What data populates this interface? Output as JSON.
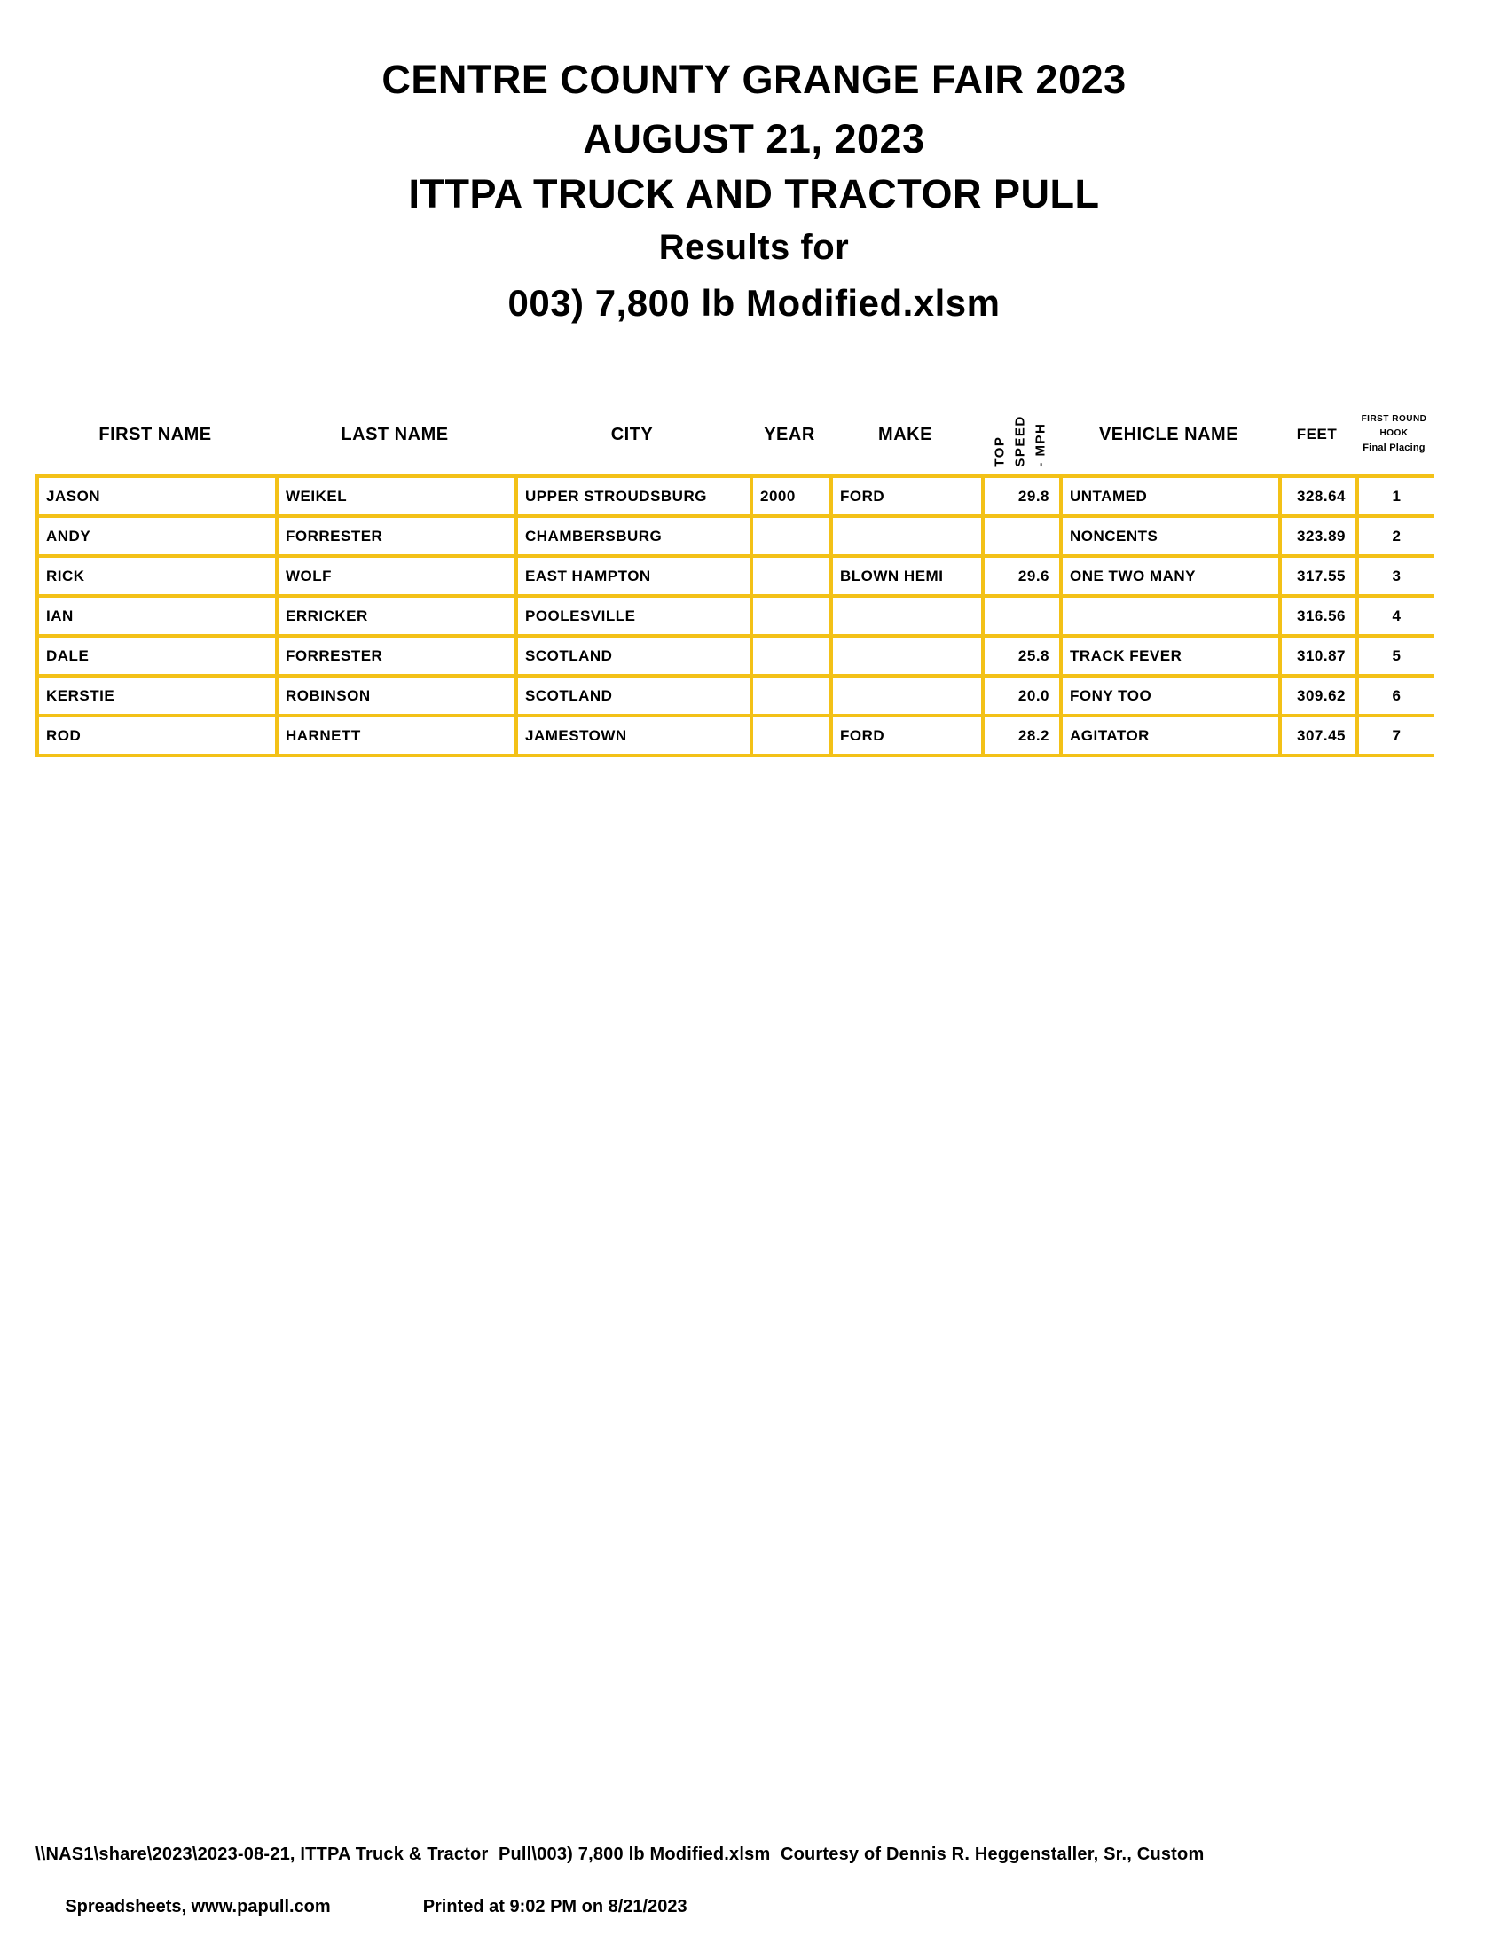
{
  "title": {
    "line1": "CENTRE COUNTY GRANGE FAIR 2023",
    "line2": "AUGUST 21, 2023",
    "line3": "ITTPA TRUCK AND TRACTOR PULL",
    "line4": "Results for",
    "line5": "003) 7,800 lb Modified.xlsm"
  },
  "table": {
    "headers": {
      "first_name": "FIRST NAME",
      "last_name": "LAST NAME",
      "city": "CITY",
      "year": "YEAR",
      "make": "MAKE",
      "top_speed_lines": [
        "TOP",
        "SPEED",
        "- MPH"
      ],
      "vehicle_name": "VEHICLE NAME",
      "feet": "FEET",
      "placing_lines": [
        "FIRST ROUND",
        "HOOK",
        "Final Placing"
      ]
    },
    "rows": [
      {
        "first_name": "JASON",
        "last_name": "WEIKEL",
        "city": "UPPER STROUDSBURG",
        "year": "2000",
        "make": "FORD",
        "top_speed": "29.8",
        "vehicle_name": "UNTAMED",
        "feet": "328.64",
        "placing": "1"
      },
      {
        "first_name": "ANDY",
        "last_name": "FORRESTER",
        "city": "CHAMBERSBURG",
        "year": "",
        "make": "",
        "top_speed": "",
        "vehicle_name": "NONCENTS",
        "feet": "323.89",
        "placing": "2"
      },
      {
        "first_name": "RICK",
        "last_name": "WOLF",
        "city": "EAST HAMPTON",
        "year": "",
        "make": "BLOWN HEMI",
        "top_speed": "29.6",
        "vehicle_name": "ONE TWO MANY",
        "feet": "317.55",
        "placing": "3"
      },
      {
        "first_name": "IAN",
        "last_name": "ERRICKER",
        "city": "POOLESVILLE",
        "year": "",
        "make": "",
        "top_speed": "",
        "vehicle_name": "",
        "feet": "316.56",
        "placing": "4"
      },
      {
        "first_name": "DALE",
        "last_name": "FORRESTER",
        "city": "SCOTLAND",
        "year": "",
        "make": "",
        "top_speed": "25.8",
        "vehicle_name": "TRACK FEVER",
        "feet": "310.87",
        "placing": "5"
      },
      {
        "first_name": "KERSTIE",
        "last_name": "ROBINSON",
        "city": "SCOTLAND",
        "year": "",
        "make": "",
        "top_speed": "20.0",
        "vehicle_name": "FONY TOO",
        "feet": "309.62",
        "placing": "6"
      },
      {
        "first_name": "ROD",
        "last_name": "HARNETT",
        "city": "JAMESTOWN",
        "year": "",
        "make": "FORD",
        "top_speed": "28.2",
        "vehicle_name": "AGITATOR",
        "feet": "307.45",
        "placing": "7"
      }
    ]
  },
  "footer": {
    "line1": "\\\\NAS1\\share\\2023\\2023-08-21, ITTPA Truck & Tractor  Pull\\003) 7,800 lb Modified.xlsm  Courtesy of Dennis R. Heggenstaller, Sr., Custom",
    "line2_left": "Spreadsheets, www.papull.com",
    "line2_right": "Printed at 9:02 PM on 8/21/2023"
  },
  "colors": {
    "table_border": "#F3C117",
    "text": "#000000",
    "page_background": "#FFFFFF"
  }
}
